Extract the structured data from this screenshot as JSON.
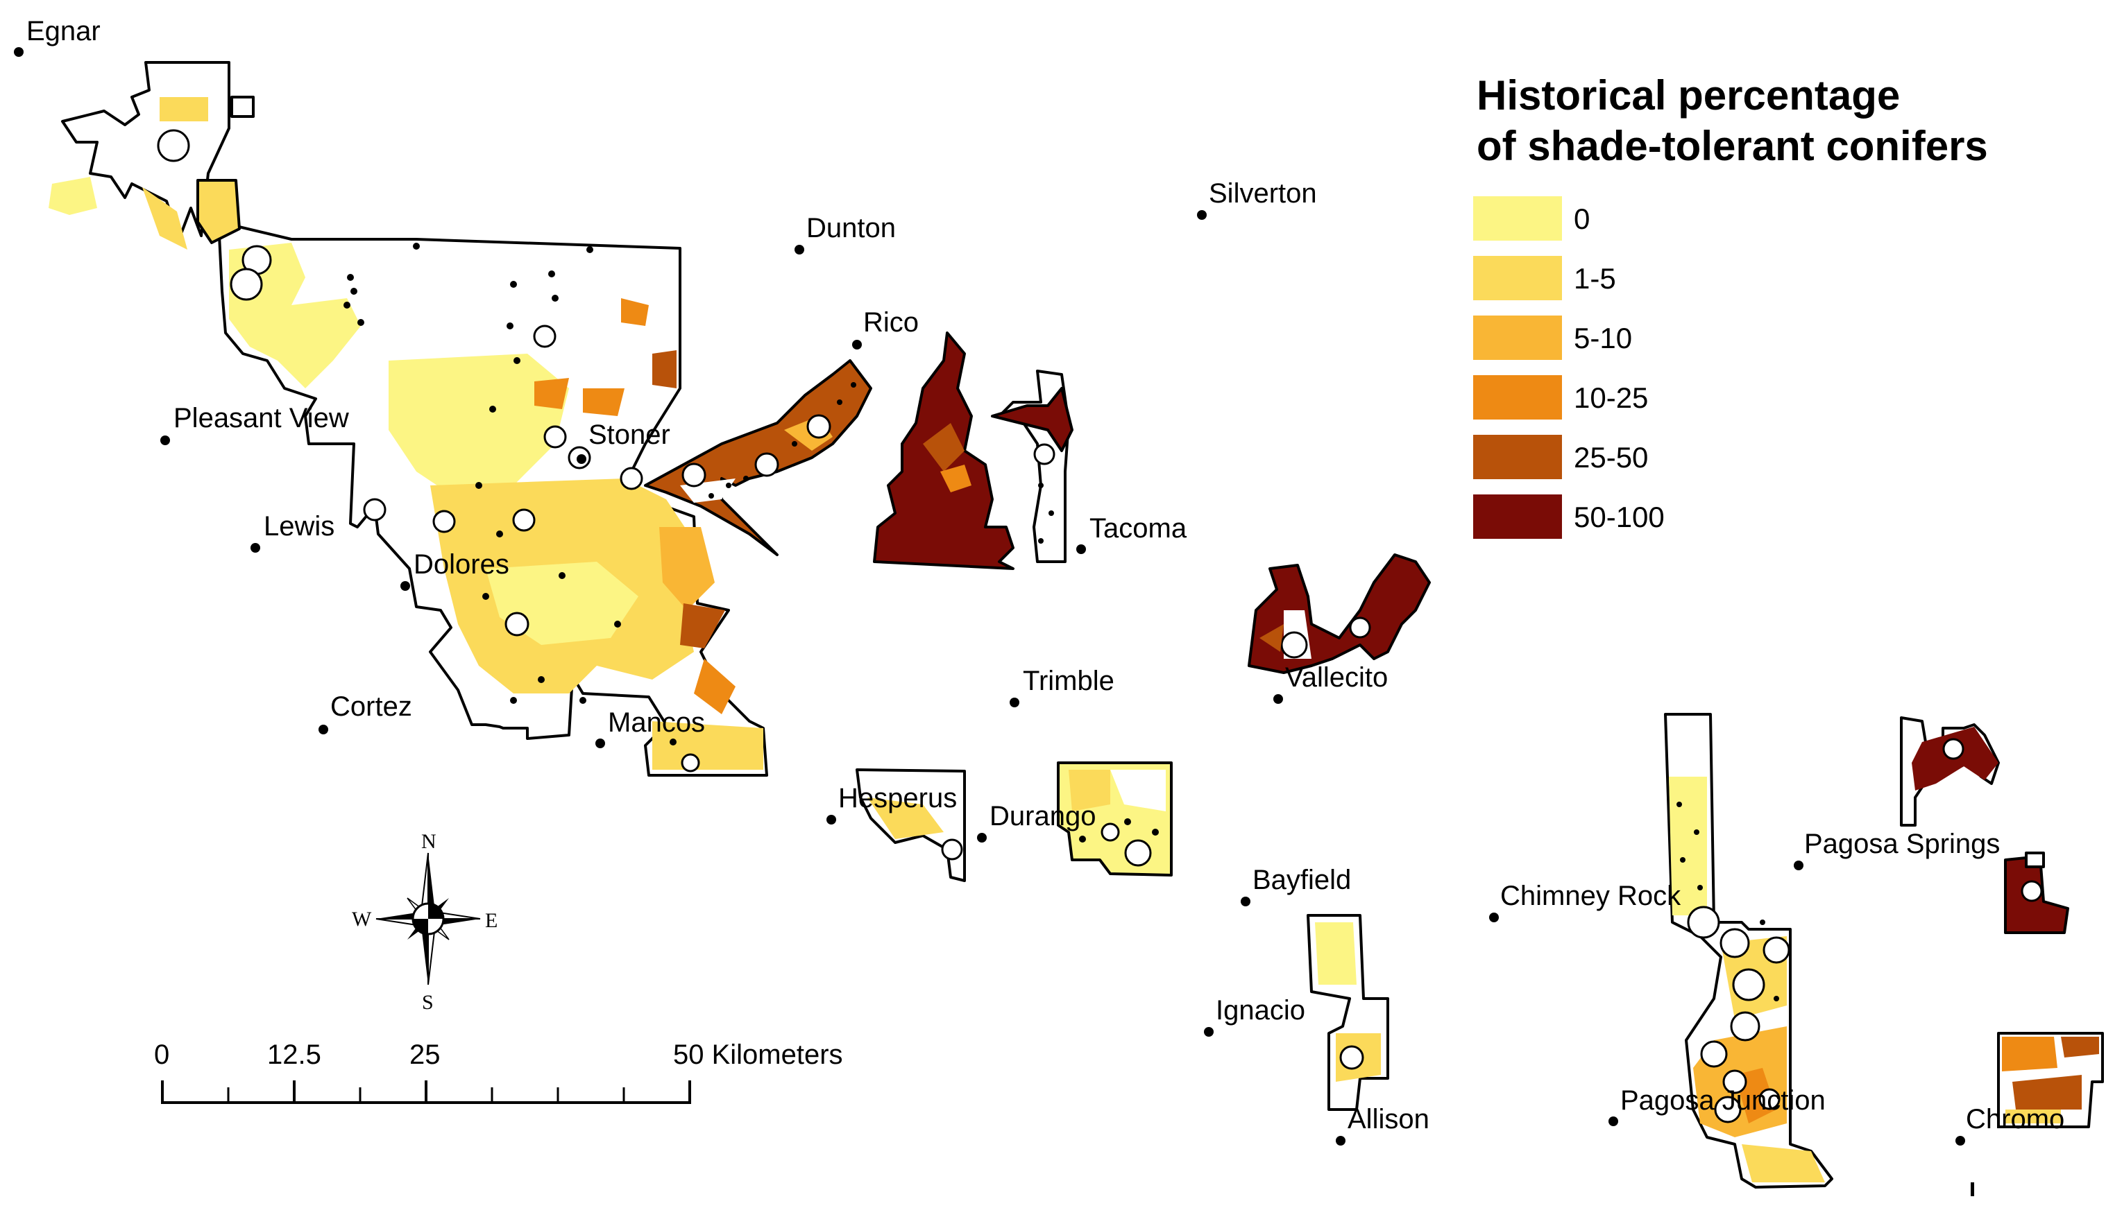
{
  "legend": {
    "title_line1": "Historical percentage",
    "title_line2": "of shade-tolerant conifers",
    "classes": [
      {
        "label": "0",
        "color": "#fcf584"
      },
      {
        "label": "1-5",
        "color": "#fbda5a"
      },
      {
        "label": "5-10",
        "color": "#f9b635"
      },
      {
        "label": "10-25",
        "color": "#ee8a14"
      },
      {
        "label": "25-50",
        "color": "#b8520a"
      },
      {
        "label": "50-100",
        "color": "#7a0c06"
      }
    ]
  },
  "towns": [
    {
      "name": "Egnar"
    },
    {
      "name": "Pleasant View"
    },
    {
      "name": "Lewis"
    },
    {
      "name": "Dolores"
    },
    {
      "name": "Cortez"
    },
    {
      "name": "Mancos"
    },
    {
      "name": "Stoner"
    },
    {
      "name": "Dunton"
    },
    {
      "name": "Rico"
    },
    {
      "name": "Silverton"
    },
    {
      "name": "Tacoma"
    },
    {
      "name": "Trimble"
    },
    {
      "name": "Vallecito"
    },
    {
      "name": "Hesperus"
    },
    {
      "name": "Durango"
    },
    {
      "name": "Bayfield"
    },
    {
      "name": "Ignacio"
    },
    {
      "name": "Allison"
    },
    {
      "name": "Chimney Rock"
    },
    {
      "name": "Pagosa Springs"
    },
    {
      "name": "Pagosa Junction"
    },
    {
      "name": "Chromo"
    }
  ],
  "compass": {
    "n": "N",
    "s": "S",
    "e": "E",
    "w": "W"
  },
  "scale_bar": {
    "ticks": [
      "0",
      "12.5",
      "25",
      "50 Kilometers"
    ]
  },
  "colors": {
    "boundary": "#000000",
    "background": "#ffffff"
  }
}
